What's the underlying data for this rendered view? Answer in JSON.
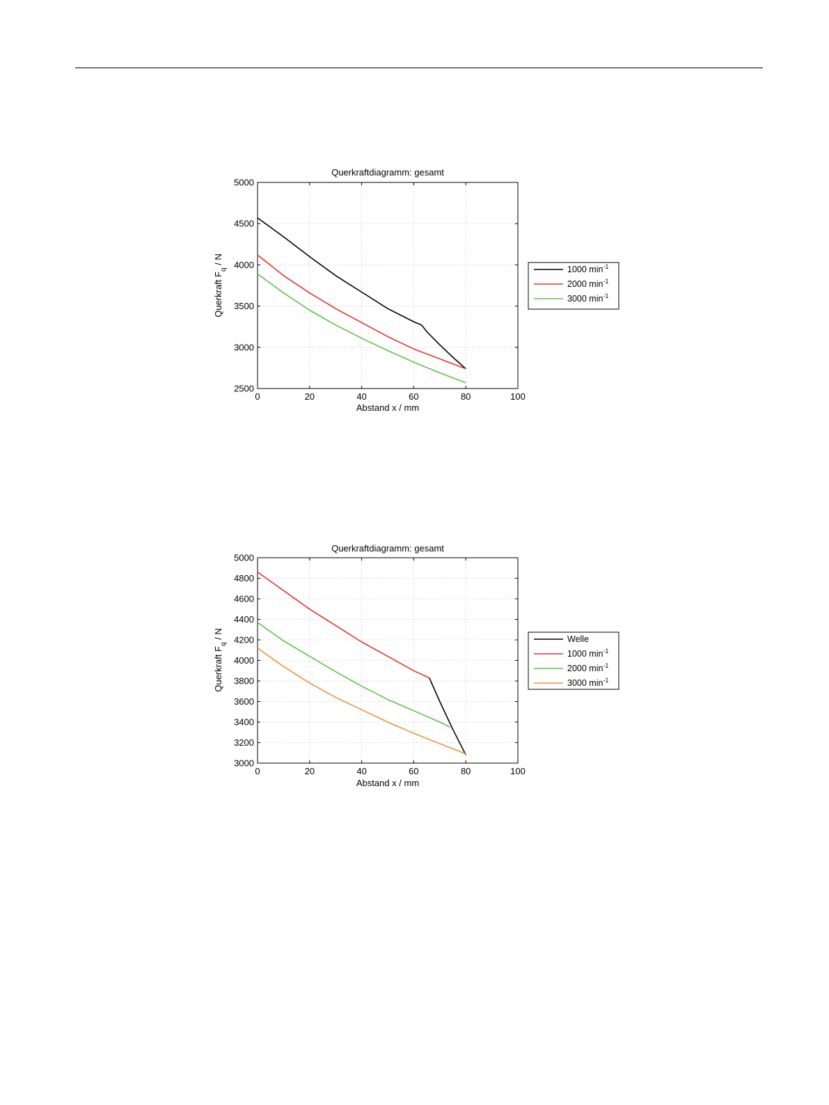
{
  "page": {
    "background": "#ffffff"
  },
  "chart_data": [
    {
      "type": "line",
      "title": "Querkraftdiagramm: gesamt",
      "xlabel": "Abstand  x  /  mm",
      "ylabel": {
        "main": "Querkraft  F",
        "sub": "q",
        "unit": "  /  N"
      },
      "xlim": [
        0,
        100
      ],
      "ylim": [
        2500,
        5000
      ],
      "xticks": [
        0,
        20,
        40,
        60,
        80,
        100
      ],
      "yticks": [
        2500,
        3000,
        3500,
        4000,
        4500,
        5000
      ],
      "grid": true,
      "legend_position": "right",
      "series": [
        {
          "name": "1000 min",
          "sup": "-1",
          "color": "#000000",
          "points": [
            [
              0,
              4570
            ],
            [
              10,
              4340
            ],
            [
              20,
              4100
            ],
            [
              30,
              3870
            ],
            [
              40,
              3670
            ],
            [
              50,
              3470
            ],
            [
              60,
              3310
            ],
            [
              63,
              3270
            ],
            [
              65,
              3190
            ],
            [
              70,
              3030
            ],
            [
              75,
              2880
            ],
            [
              80,
              2740
            ]
          ]
        },
        {
          "name": "2000 min",
          "sup": "-1",
          "color": "#e8312a",
          "points": [
            [
              0,
              4120
            ],
            [
              10,
              3870
            ],
            [
              20,
              3660
            ],
            [
              30,
              3470
            ],
            [
              40,
              3300
            ],
            [
              50,
              3130
            ],
            [
              60,
              2980
            ],
            [
              70,
              2860
            ],
            [
              80,
              2740
            ]
          ]
        },
        {
          "name": "3000 min",
          "sup": "-1",
          "color": "#5ec14a",
          "points": [
            [
              0,
              3890
            ],
            [
              10,
              3660
            ],
            [
              20,
              3450
            ],
            [
              30,
              3270
            ],
            [
              40,
              3110
            ],
            [
              50,
              2960
            ],
            [
              60,
              2820
            ],
            [
              70,
              2690
            ],
            [
              80,
              2570
            ]
          ]
        }
      ]
    },
    {
      "type": "line",
      "title": "Querkraftdiagramm: gesamt",
      "xlabel": "Abstand  x  /  mm",
      "ylabel": {
        "main": "Querkraft  F",
        "sub": "q",
        "unit": "  /  N"
      },
      "xlim": [
        0,
        100
      ],
      "ylim": [
        3000,
        5000
      ],
      "xticks": [
        0,
        20,
        40,
        60,
        80,
        100
      ],
      "yticks": [
        3000,
        3200,
        3400,
        3600,
        3800,
        4000,
        4200,
        4400,
        4600,
        4800,
        5000
      ],
      "grid": true,
      "legend_position": "right",
      "series": [
        {
          "name": "Welle",
          "sup": "",
          "color": "#000000",
          "points": [
            [
              66,
              3830
            ],
            [
              70,
              3600
            ],
            [
              75,
              3330
            ],
            [
              80,
              3080
            ]
          ]
        },
        {
          "name": "1000 min",
          "sup": "-1",
          "color": "#e8312a",
          "points": [
            [
              0,
              4860
            ],
            [
              10,
              4680
            ],
            [
              20,
              4500
            ],
            [
              30,
              4340
            ],
            [
              40,
              4180
            ],
            [
              50,
              4040
            ],
            [
              60,
              3900
            ],
            [
              66,
              3830
            ]
          ]
        },
        {
          "name": "2000 min",
          "sup": "-1",
          "color": "#5ec14a",
          "points": [
            [
              0,
              4370
            ],
            [
              10,
              4190
            ],
            [
              20,
              4040
            ],
            [
              30,
              3890
            ],
            [
              40,
              3750
            ],
            [
              50,
              3620
            ],
            [
              60,
              3510
            ],
            [
              70,
              3400
            ],
            [
              74,
              3350
            ]
          ]
        },
        {
          "name": "3000 min",
          "sup": "-1",
          "color": "#f0913a",
          "points": [
            [
              0,
              4120
            ],
            [
              10,
              3940
            ],
            [
              20,
              3780
            ],
            [
              30,
              3640
            ],
            [
              40,
              3520
            ],
            [
              50,
              3400
            ],
            [
              60,
              3290
            ],
            [
              70,
              3190
            ],
            [
              80,
              3090
            ]
          ]
        }
      ]
    }
  ]
}
